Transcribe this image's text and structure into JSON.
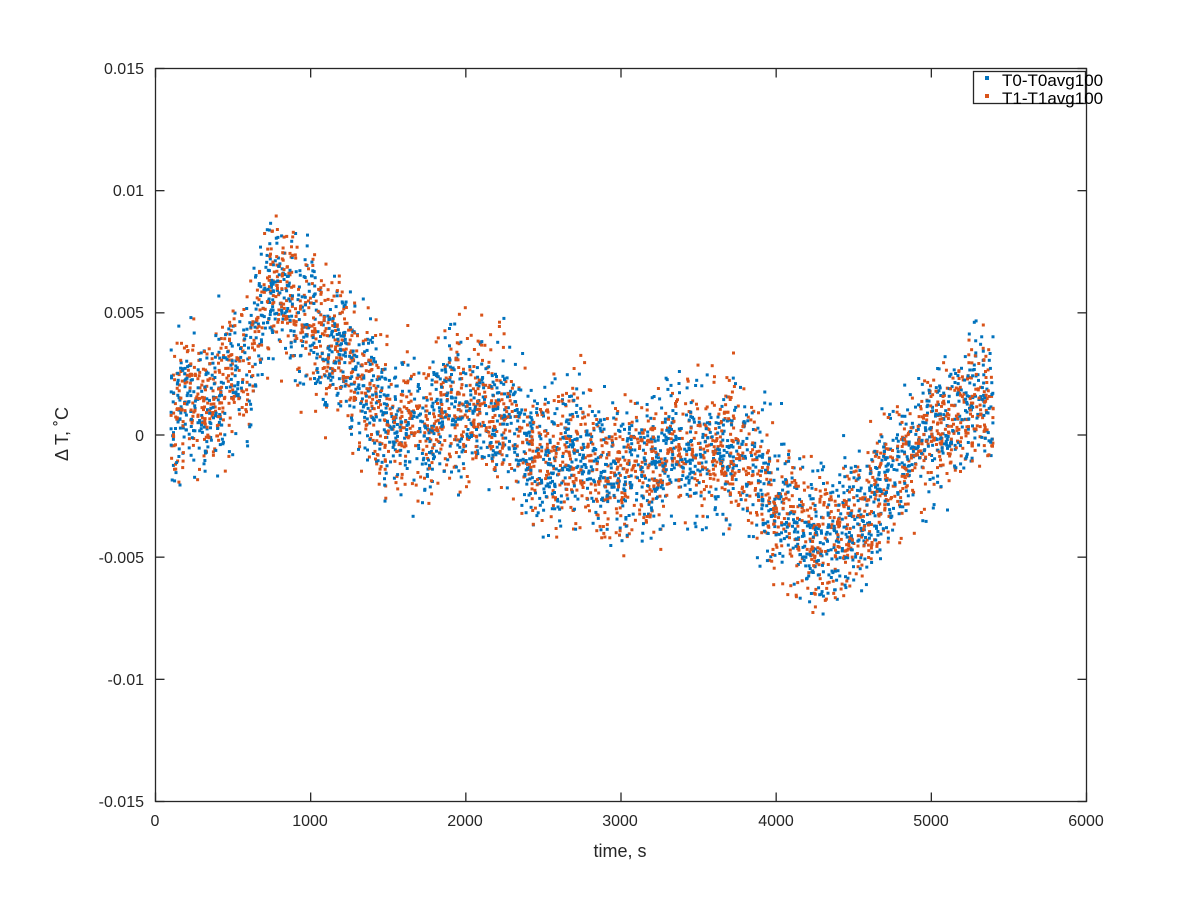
{
  "chart_data": {
    "type": "scatter",
    "title": "",
    "xlabel": "time, s",
    "ylabel": "Δ T, ˚C",
    "xlim": [
      0,
      6000
    ],
    "ylim": [
      -0.015,
      0.015
    ],
    "xticks": [
      "0",
      "1000",
      "2000",
      "3000",
      "4000",
      "5000",
      "6000"
    ],
    "yticks": [
      "-0.015",
      "-0.01",
      "-0.005",
      "0",
      "0.005",
      "0.01",
      "0.015"
    ],
    "grid": false,
    "legend_position": "top-right",
    "note_points": "Dense scatter (one point per second, ~100-5400 s); series are summarized by their approximate running centre value every 100 s with typical scatter half-width",
    "x": [
      100,
      200,
      300,
      400,
      500,
      600,
      700,
      800,
      900,
      1000,
      1100,
      1200,
      1300,
      1400,
      1500,
      1600,
      1700,
      1800,
      1900,
      2000,
      2100,
      2200,
      2300,
      2400,
      2500,
      2600,
      2700,
      2800,
      2900,
      3000,
      3100,
      3200,
      3300,
      3400,
      3500,
      3600,
      3700,
      3800,
      3900,
      4000,
      4100,
      4200,
      4300,
      4400,
      4500,
      4600,
      4700,
      4800,
      4900,
      5000,
      5100,
      5200,
      5300,
      5400
    ],
    "series": [
      {
        "name": "T0-T0avg100",
        "color": "#0072BD",
        "center": [
          0.001,
          0.0015,
          0.001,
          0.0015,
          0.0025,
          0.003,
          0.0055,
          0.006,
          0.005,
          0.0045,
          0.0035,
          0.0035,
          0.0025,
          0.0015,
          0.0005,
          0.0005,
          0.0,
          0.0005,
          0.0015,
          0.001,
          0.0015,
          0.001,
          0.0005,
          -0.0005,
          -0.001,
          -0.001,
          -0.0005,
          -0.001,
          -0.0015,
          -0.0015,
          -0.001,
          -0.0015,
          -0.0005,
          -0.0005,
          -0.001,
          -0.0005,
          -0.0005,
          -0.001,
          -0.002,
          -0.003,
          -0.003,
          -0.004,
          -0.0045,
          -0.004,
          -0.0035,
          -0.003,
          -0.002,
          -0.001,
          -0.0005,
          0.0,
          0.0005,
          0.001,
          0.0015,
          0.001
        ],
        "spread": 0.0028
      },
      {
        "name": "T1-T1avg100",
        "color": "#D95319",
        "center": [
          0.001,
          0.0015,
          0.001,
          0.0015,
          0.0025,
          0.003,
          0.0055,
          0.006,
          0.005,
          0.0045,
          0.0035,
          0.0035,
          0.0025,
          0.0015,
          0.0005,
          0.0005,
          0.0,
          0.0005,
          0.0015,
          0.001,
          0.0015,
          0.001,
          0.0005,
          -0.0005,
          -0.001,
          -0.001,
          -0.0005,
          -0.001,
          -0.0015,
          -0.0015,
          -0.001,
          -0.0015,
          -0.0005,
          -0.0005,
          -0.001,
          -0.0005,
          -0.0005,
          -0.001,
          -0.002,
          -0.003,
          -0.003,
          -0.004,
          -0.0045,
          -0.004,
          -0.0035,
          -0.003,
          -0.002,
          -0.001,
          -0.0005,
          0.0,
          0.0005,
          0.001,
          0.0015,
          0.001
        ],
        "spread": 0.0028
      }
    ]
  }
}
